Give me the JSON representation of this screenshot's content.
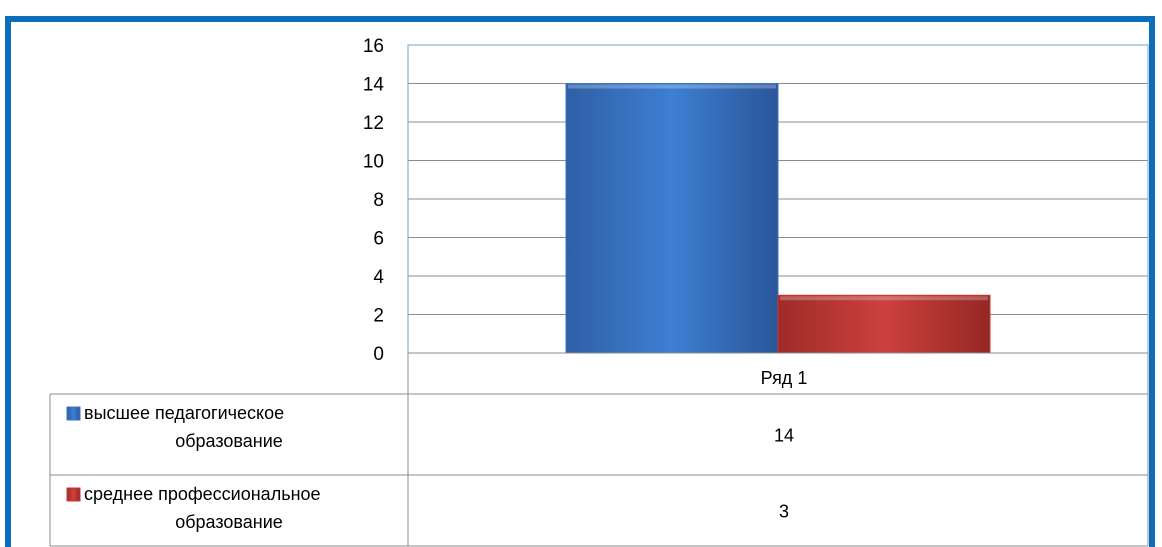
{
  "title": "",
  "chart_data": {
    "type": "bar",
    "categories": [
      "Ряд 1"
    ],
    "series": [
      {
        "name": "высшее педагогическое образование",
        "label_lines": [
          "высшее педагогическое",
          "образование"
        ],
        "values": [
          14
        ],
        "color": "#3a76c8"
      },
      {
        "name": "среднее профессиональное образование",
        "label_lines": [
          "среднее профессиональное",
          "образование"
        ],
        "values": [
          3
        ],
        "color": "#c43a37"
      }
    ],
    "ylim": [
      0,
      16
    ],
    "yticks": [
      0,
      2,
      4,
      6,
      8,
      10,
      12,
      14,
      16
    ],
    "grid": true,
    "legend": "data-table"
  }
}
